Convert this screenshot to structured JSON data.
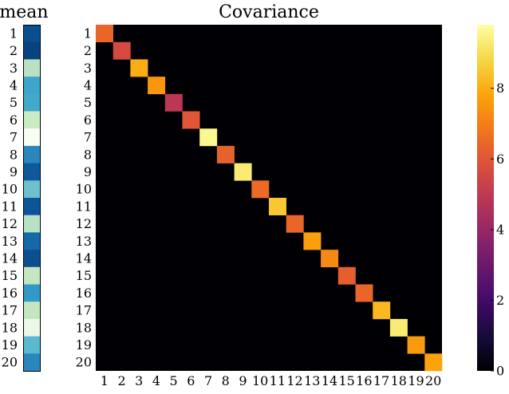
{
  "chart_data": [
    {
      "type": "heatmap",
      "title": "mean",
      "rows": [
        "1",
        "2",
        "3",
        "4",
        "5",
        "6",
        "7",
        "8",
        "9",
        "10",
        "11",
        "12",
        "13",
        "14",
        "15",
        "16",
        "17",
        "18",
        "19",
        "20"
      ],
      "colors": [
        "#0b4e8f",
        "#08427f",
        "#b9e2c4",
        "#3fa6cb",
        "#42a9cb",
        "#cbebc5",
        "#fafdf4",
        "#2a87bc",
        "#0c5a9c",
        "#6dc0cc",
        "#0b559a",
        "#b9e2c4",
        "#1469a8",
        "#0b4f8f",
        "#c4e7c1",
        "#3299c6",
        "#c3e6c1",
        "#ecf7e6",
        "#5ab9d0",
        "#2a87bc"
      ]
    },
    {
      "type": "heatmap",
      "title": "Covariance",
      "x_tick_labels": [
        "1",
        "2",
        "3",
        "4",
        "5",
        "6",
        "7",
        "8",
        "9",
        "10",
        "11",
        "12",
        "13",
        "14",
        "15",
        "16",
        "17",
        "18",
        "19",
        "20"
      ],
      "y_tick_labels": [
        "1",
        "2",
        "3",
        "4",
        "5",
        "6",
        "7",
        "8",
        "9",
        "10",
        "11",
        "12",
        "13",
        "14",
        "15",
        "16",
        "17",
        "18",
        "19",
        "20"
      ],
      "diagonal_values": [
        6.4,
        5.6,
        8.0,
        7.5,
        4.9,
        6.0,
        9.6,
        6.3,
        9.3,
        6.5,
        8.5,
        6.4,
        7.7,
        7.2,
        6.2,
        6.4,
        8.2,
        9.3,
        7.6,
        7.8
      ],
      "off_diagonal_value": 0,
      "colormap": "inferno",
      "colorbar": {
        "vmin": 0,
        "vmax": 9.8,
        "ticks": [
          0,
          2,
          4,
          6,
          8
        ],
        "tick_labels": [
          "0",
          "2",
          "4",
          "6",
          "8"
        ]
      }
    }
  ]
}
